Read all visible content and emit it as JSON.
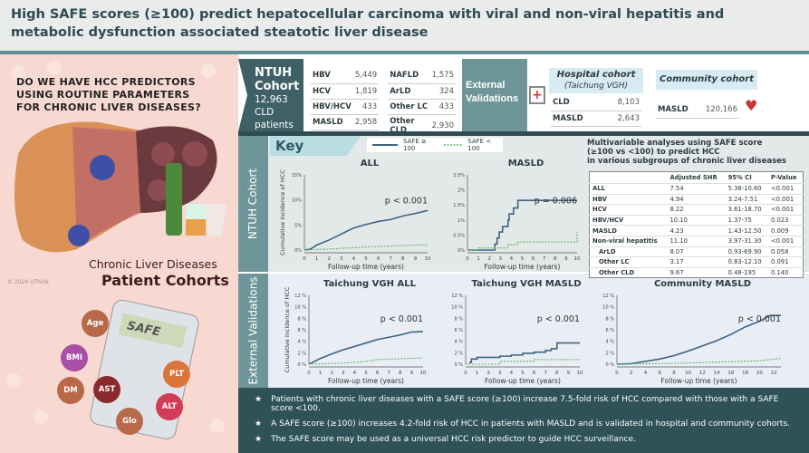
{
  "title": "High SAFE scores (≥100) predict hepatocellular carcinoma with viral and non-viral hepatitis and metabolic dysfunction associated steatotic liver disease",
  "left": {
    "question": [
      "DO WE HAVE HCC PREDICTORS",
      "USING ROUTINE PARAMETERS",
      "FOR CHRONIC LIVER DISEASES?"
    ],
    "caption1": "Chronic Liver Diseases",
    "caption2": "Patient Cohorts",
    "copyright": "© 2024 UThink",
    "calculator": "SAFE",
    "params": [
      {
        "label": "Age",
        "color": "#b7694a"
      },
      {
        "label": "BMI",
        "color": "#a94fa6"
      },
      {
        "label": "DM",
        "color": "#b7694a"
      },
      {
        "label": "AST",
        "color": "#8b2a2e"
      },
      {
        "label": "Glo",
        "color": "#b7694a"
      },
      {
        "label": "PLT",
        "color": "#d9753a"
      },
      {
        "label": "ALT",
        "color": "#d33c56"
      }
    ]
  },
  "ntuh": {
    "name1": "NTUH",
    "name2": "Cohort",
    "count": "12,963",
    "unit": "CLD patients",
    "col1": [
      [
        "HBV",
        "5,449"
      ],
      [
        "HCV",
        "1,819"
      ],
      [
        "HBV/HCV",
        "433"
      ],
      [
        "MASLD",
        "2,958"
      ]
    ],
    "col2": [
      [
        "NAFLD",
        "1,575"
      ],
      [
        "ArLD",
        "324"
      ],
      [
        "Other LC",
        "433"
      ],
      [
        "Other CLD",
        "2,930"
      ]
    ]
  },
  "external": {
    "label1": "External",
    "label2": "Validations",
    "hospital_title": "Hospital cohort",
    "hospital_sub": "(Taichung VGH)",
    "hospital_rows": [
      [
        "CLD",
        "8,103"
      ],
      [
        "MASLD",
        "2,643"
      ]
    ],
    "community_title": "Community cohort",
    "community_rows": [
      [
        "MASLD",
        "120,166"
      ]
    ]
  },
  "key_findings": "Key Findings",
  "ntuh_label": "NTUH Cohort",
  "ext_label": "External Validations",
  "legend": {
    "high": "SAFE ≥ 100",
    "low": "SAFE < 100",
    "high_color": "#3d6483",
    "low_color": "#5cb85c"
  },
  "colors": {
    "teal_dark": "#2f5258",
    "teal": "#6e9599"
  },
  "chart_data": [
    {
      "type": "line",
      "title": "ALL",
      "xlabel": "Follow-up time (years)",
      "ylabel": "Cumulative incidence of HCC",
      "xlim": [
        0,
        10
      ],
      "ylim": [
        0,
        15
      ],
      "xticks": [
        0,
        1,
        2,
        3,
        4,
        5,
        6,
        7,
        8,
        9,
        10
      ],
      "yticks": [
        0,
        5,
        10,
        15
      ],
      "yfmt": "%",
      "pvalue": "p < 0.001",
      "series": [
        {
          "name": "SAFE ≥ 100",
          "x": [
            0,
            0.5,
            1,
            2,
            3,
            4,
            5,
            6,
            7,
            8,
            9,
            10
          ],
          "y": [
            0,
            0.2,
            1,
            2,
            3.2,
            4.4,
            5.1,
            5.7,
            6.1,
            6.8,
            7.3,
            7.9
          ]
        },
        {
          "name": "SAFE < 100",
          "x": [
            0,
            2,
            5,
            9,
            9.9,
            10
          ],
          "y": [
            0,
            0.2,
            0.6,
            1,
            1,
            1.2
          ]
        }
      ]
    },
    {
      "type": "line",
      "step": true,
      "title": "MASLD",
      "xlabel": "Follow-up time (years)",
      "ylabel": "",
      "xlim": [
        0,
        10
      ],
      "ylim": [
        0,
        2.5
      ],
      "xticks": [
        0,
        1,
        2,
        3,
        4,
        5,
        6,
        7,
        8,
        9,
        10
      ],
      "yticks": [
        0,
        0.5,
        1,
        1.5,
        2,
        2.5
      ],
      "yfmt": "%",
      "pvalue": "p = 0.006",
      "series": [
        {
          "name": "SAFE ≥ 100",
          "x": [
            0,
            2.5,
            2.7,
            2.9,
            3.2,
            3.7,
            3.8,
            4.2,
            4.6,
            10
          ],
          "y": [
            0,
            0.2,
            0.4,
            0.6,
            0.78,
            1.0,
            1.2,
            1.4,
            1.65,
            1.65
          ]
        },
        {
          "name": "SAFE < 100",
          "x": [
            0,
            1,
            3.7,
            4.6,
            9.9,
            10
          ],
          "y": [
            0,
            0.07,
            0.18,
            0.27,
            0.27,
            0.6
          ]
        }
      ]
    },
    {
      "type": "line",
      "title": "Taichung VGH ALL",
      "xlabel": "Follow-up time (years)",
      "ylabel": "Cumulative incidence of HCC",
      "xlim": [
        0,
        10
      ],
      "ylim": [
        0,
        12
      ],
      "xticks": [
        0,
        1,
        2,
        3,
        4,
        5,
        6,
        7,
        8,
        9,
        10
      ],
      "yticks": [
        0,
        2,
        4,
        6,
        8,
        10,
        12
      ],
      "yfmt": " %",
      "pvalue": "p < 0.001",
      "series": [
        {
          "name": "SAFE ≥ 100",
          "x": [
            0,
            1,
            2,
            3,
            4,
            5,
            6,
            7,
            8,
            9,
            10
          ],
          "y": [
            0,
            1,
            1.8,
            2.5,
            3.1,
            3.7,
            4.3,
            4.7,
            5.1,
            5.6,
            5.7
          ]
        },
        {
          "name": "SAFE < 100",
          "x": [
            0,
            3,
            5,
            6,
            10
          ],
          "y": [
            0,
            0.2,
            0.5,
            0.8,
            1.1
          ]
        }
      ]
    },
    {
      "type": "line",
      "step": true,
      "title": "Taichung VGH MASLD",
      "xlabel": "Follow-up time (years)",
      "ylabel": "",
      "xlim": [
        0,
        10
      ],
      "ylim": [
        0,
        12
      ],
      "xticks": [
        0,
        1,
        2,
        3,
        4,
        5,
        6,
        7,
        8,
        9,
        10
      ],
      "yticks": [
        0,
        2,
        4,
        6,
        8,
        10,
        12
      ],
      "yfmt": " %",
      "pvalue": "p < 0.001",
      "series": [
        {
          "name": "SAFE ≥ 100",
          "x": [
            0.3,
            0.5,
            1,
            3,
            4,
            5,
            6,
            7,
            7.5,
            8,
            10
          ],
          "y": [
            0.3,
            0.9,
            1.2,
            1.4,
            1.6,
            1.9,
            2.1,
            2.4,
            2.7,
            3.7,
            3.7
          ]
        },
        {
          "name": "SAFE < 100",
          "x": [
            0,
            3,
            6,
            10
          ],
          "y": [
            0,
            0.5,
            0.8,
            0.8
          ]
        }
      ]
    },
    {
      "type": "line",
      "title": "Community MASLD",
      "xlabel": "Follow-up time (years)",
      "ylabel": "",
      "xlim": [
        0,
        23
      ],
      "ylim": [
        0,
        12
      ],
      "xticks": [
        0,
        2,
        4,
        6,
        8,
        10,
        12,
        14,
        16,
        18,
        20,
        22
      ],
      "yticks": [
        0,
        2,
        4,
        6,
        8,
        10,
        12
      ],
      "yfmt": " %",
      "pvalue": "p < 0.001",
      "series": [
        {
          "name": "SAFE ≥ 100",
          "x": [
            0,
            2,
            4,
            6,
            8,
            10,
            12,
            14,
            16,
            18,
            20,
            21.5,
            23
          ],
          "y": [
            0,
            0.1,
            0.5,
            0.9,
            1.5,
            2.3,
            3.2,
            4.1,
            5.2,
            6.5,
            7.5,
            8.5,
            8.5
          ]
        },
        {
          "name": "SAFE < 100",
          "x": [
            0,
            10,
            20,
            23
          ],
          "y": [
            0,
            0.2,
            0.6,
            1.0
          ]
        }
      ]
    }
  ],
  "multivariable": {
    "title": [
      "Multivariable analyses using SAFE score",
      "(≥100 vs <100) to predict HCC",
      "in various subgroups of chronic liver diseases"
    ],
    "headers": [
      "",
      "Adjusted SHR",
      "95% CI",
      "P-Value"
    ],
    "rows": [
      [
        "ALL",
        "7.54",
        "5.38-10.60",
        "<0.001"
      ],
      [
        "HBV",
        "4.94",
        "3.24-7.51",
        "<0.001"
      ],
      [
        "HCV",
        "8.22",
        "3.61-18.70",
        "<0.001"
      ],
      [
        "HBV/HCV",
        "10.10",
        "1.37-75",
        "0.023"
      ],
      [
        "MASLD",
        "4.23",
        "1.43-12.50",
        "0.009"
      ],
      [
        "Non-viral hepatitis",
        "11.10",
        "3.97-31.30",
        "<0.001"
      ],
      [
        "ArLD",
        "8.07",
        "0.93-69.90",
        "0.058"
      ],
      [
        "Other LC",
        "3.17",
        "0.83-12.10",
        "0.091"
      ],
      [
        "Other CLD",
        "9.67",
        "0.48-195",
        "0.140"
      ]
    ]
  },
  "bullets": [
    "Patients with chronic liver diseases with a SAFE score (≥100) increase 7.5-fold risk of HCC compared with those with a SAFE score <100.",
    "A SAFE score (≥100) increases 4.2-fold risk of HCC in patients with MASLD and is validated in hospital and community cohorts.",
    "The SAFE score may be used as a universal HCC risk predictor to guide HCC surveillance."
  ]
}
